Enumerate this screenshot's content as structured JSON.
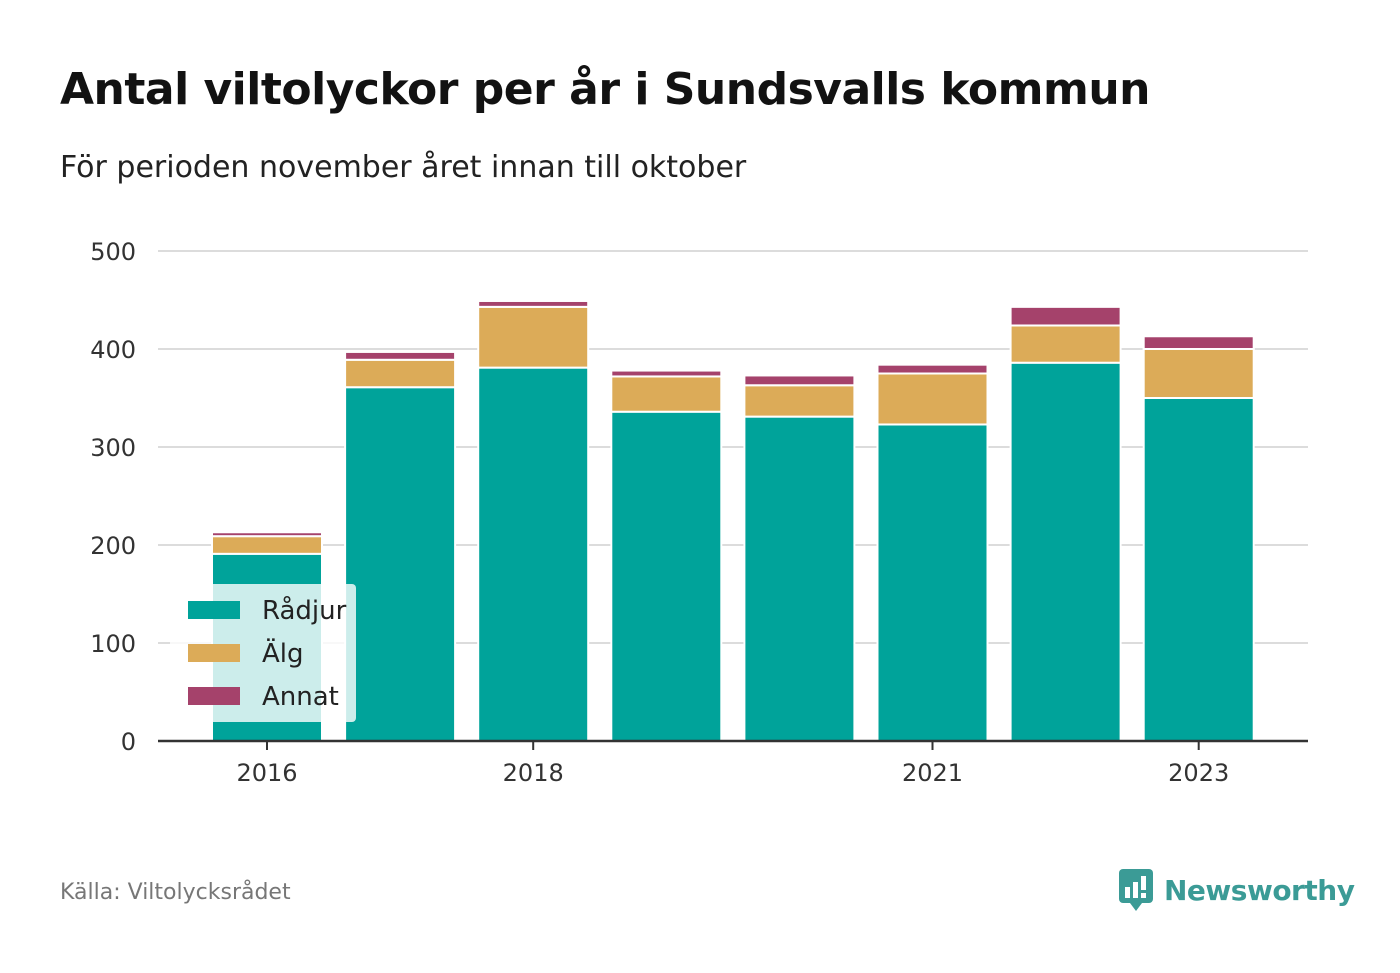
{
  "header": {
    "title": "Antal viltolyckor per år i Sundsvalls kommun",
    "subtitle": "För perioden november året innan till oktober"
  },
  "footer": {
    "source": "Källa: Viltolycksrådet",
    "brand": "Newsworthy",
    "brand_icon": "chart-bubble-icon"
  },
  "colors": {
    "radjur": "#00a39a",
    "alg": "#dcab58",
    "annat": "#a5426b",
    "grid": "#dcdcdc",
    "axis": "#333333",
    "brand": "#3b9b96"
  },
  "chart_data": {
    "type": "bar",
    "stacked": true,
    "categories": [
      "2016",
      "2017",
      "2018",
      "2019",
      "2020",
      "2021",
      "2022",
      "2023"
    ],
    "x_tick_labels": [
      "2016",
      "2018",
      "2021",
      "2023"
    ],
    "series": [
      {
        "name": "Rådjur",
        "color": "#00a39a",
        "values": [
          191,
          361,
          381,
          336,
          331,
          323,
          386,
          350
        ]
      },
      {
        "name": "Älg",
        "color": "#dcab58",
        "values": [
          18,
          28,
          62,
          36,
          32,
          52,
          38,
          50
        ]
      },
      {
        "name": "Annat",
        "color": "#a5426b",
        "values": [
          4,
          8,
          6,
          6,
          10,
          9,
          19,
          13
        ]
      }
    ],
    "ylim": [
      0,
      500
    ],
    "y_ticks": [
      0,
      100,
      200,
      300,
      400,
      500
    ],
    "grid": true,
    "legend_position": "bottom-left"
  }
}
